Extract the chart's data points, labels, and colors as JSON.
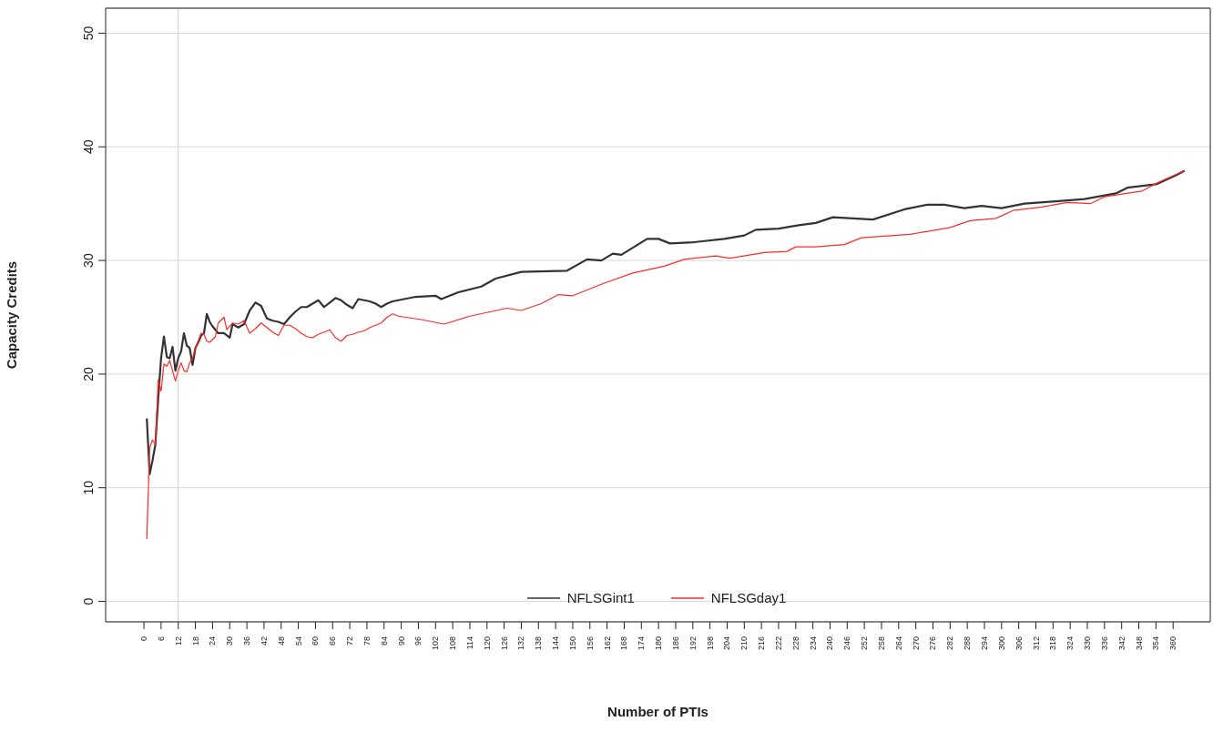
{
  "chart_data": {
    "type": "line",
    "xlabel": "Number of PTIs",
    "ylabel": "Capacity Credits",
    "xlim": [
      -13.4,
      373
    ],
    "ylim": [
      -1.8,
      52.2
    ],
    "xticks": [
      0,
      6,
      12,
      18,
      24,
      30,
      36,
      42,
      48,
      54,
      60,
      66,
      72,
      78,
      84,
      90,
      96,
      102,
      108,
      114,
      120,
      126,
      132,
      138,
      144,
      150,
      156,
      162,
      168,
      174,
      180,
      186,
      192,
      198,
      204,
      210,
      216,
      222,
      228,
      234,
      240,
      246,
      252,
      258,
      264,
      270,
      276,
      282,
      288,
      294,
      300,
      306,
      312,
      318,
      324,
      330,
      336,
      342,
      348,
      354,
      360
    ],
    "yticks": [
      0,
      10,
      20,
      30,
      40,
      50
    ],
    "grid": "y",
    "legend": "bottom",
    "marker": "none",
    "line_style": "solid",
    "ref_lines": [
      {
        "axis": "x",
        "value": 12,
        "color": "#d0d0d0"
      }
    ],
    "series": [
      {
        "name": "NFLSGint1",
        "color": "#333333",
        "x": [
          1,
          2,
          3,
          4,
          5,
          6,
          7,
          8,
          9,
          10,
          11,
          12,
          13,
          14,
          15,
          16,
          17,
          18,
          19,
          20,
          21,
          22,
          23,
          24,
          26,
          28,
          30,
          31,
          33,
          35,
          37,
          39,
          41,
          43,
          45,
          47,
          49,
          51,
          53,
          55,
          57,
          59,
          61,
          63,
          65,
          67,
          69,
          71,
          73,
          75,
          77,
          79,
          81,
          83,
          85,
          87,
          89,
          95,
          102,
          104,
          110,
          118,
          123,
          132,
          148,
          155,
          160,
          164,
          167,
          176,
          180,
          184,
          192,
          203,
          210,
          214,
          222,
          229,
          235,
          241,
          255,
          266,
          274,
          280,
          287,
          293,
          300,
          308,
          319,
          329,
          340,
          344,
          354,
          361,
          364
        ],
        "values": [
          16.1,
          11.2,
          12.4,
          13.8,
          17.9,
          21.4,
          23.3,
          21.5,
          21.4,
          22.4,
          20.3,
          21.4,
          22,
          23.6,
          22.5,
          22.3,
          20.8,
          22.3,
          22.8,
          23.4,
          23.6,
          25.3,
          24.6,
          24.2,
          23.6,
          23.6,
          23.2,
          24.4,
          24.1,
          24.4,
          25.6,
          26.3,
          26,
          24.9,
          24.7,
          24.6,
          24.4,
          25,
          25.5,
          25.9,
          25.9,
          26.2,
          26.5,
          25.9,
          26.3,
          26.7,
          26.5,
          26.1,
          25.8,
          26.6,
          26.5,
          26.4,
          26.2,
          25.9,
          26.2,
          26.4,
          26.5,
          26.8,
          26.9,
          26.6,
          27.2,
          27.7,
          28.4,
          29,
          29.1,
          30.1,
          30,
          30.6,
          30.5,
          31.9,
          31.9,
          31.5,
          31.6,
          31.9,
          32.2,
          32.7,
          32.8,
          33.1,
          33.3,
          33.8,
          33.6,
          34.5,
          34.9,
          34.9,
          34.6,
          34.8,
          34.6,
          35,
          35.2,
          35.4,
          35.9,
          36.4,
          36.7,
          37.5,
          37.9
        ]
      },
      {
        "name": "NFLSGday1",
        "color": "#ff2a2a",
        "x": [
          1,
          2,
          3,
          4,
          5,
          6,
          7,
          8,
          9,
          10,
          11,
          12,
          13,
          14,
          15,
          16,
          17,
          18,
          19,
          20,
          21,
          22,
          23,
          25,
          26,
          28,
          29,
          31,
          33,
          35,
          37,
          39,
          41,
          43,
          45,
          47,
          49,
          51,
          53,
          55,
          57,
          59,
          61,
          63,
          65,
          67,
          69,
          71,
          73,
          75,
          77,
          79,
          81,
          83,
          85,
          87,
          89,
          97,
          105,
          114,
          127,
          132,
          139,
          145,
          150,
          161,
          171,
          182,
          189,
          200,
          205,
          217,
          225,
          228,
          235,
          245,
          251,
          268,
          282,
          289,
          298,
          304,
          314,
          323,
          331,
          336,
          349,
          355,
          364
        ],
        "values": [
          5.5,
          13.5,
          14.2,
          13.8,
          19.5,
          18.5,
          20.9,
          20.7,
          21.2,
          20.3,
          19.4,
          20.3,
          21,
          20.3,
          20.2,
          21,
          21.4,
          22.3,
          22.9,
          23.6,
          23.5,
          22.9,
          22.8,
          23.3,
          24.5,
          25,
          23.9,
          24.5,
          24.4,
          24.7,
          23.6,
          24,
          24.5,
          24.1,
          23.7,
          23.4,
          24.3,
          24.3,
          24,
          23.6,
          23.3,
          23.2,
          23.5,
          23.7,
          23.9,
          23.2,
          22.9,
          23.4,
          23.5,
          23.7,
          23.8,
          24.1,
          24.3,
          24.5,
          25,
          25.3,
          25.1,
          24.8,
          24.4,
          25.1,
          25.8,
          25.6,
          26.2,
          27,
          26.9,
          28,
          28.9,
          29.5,
          30.1,
          30.4,
          30.2,
          30.7,
          30.8,
          31.2,
          31.2,
          31.4,
          32,
          32.3,
          32.9,
          33.5,
          33.7,
          34.4,
          34.7,
          35.1,
          35,
          35.6,
          36.1,
          36.9,
          37.9
        ]
      }
    ]
  }
}
